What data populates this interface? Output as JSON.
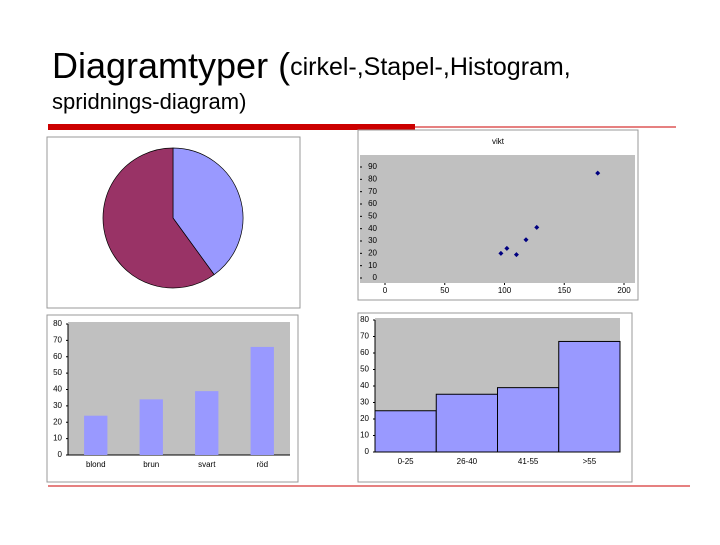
{
  "slide": {
    "title_main": "Diagramtyper (",
    "title_rest": "cirkel-,Stapel-,Histogram,",
    "title_line2": "spridnings-diagram)"
  },
  "chart_data": [
    {
      "type": "pie",
      "values": [
        40,
        60
      ],
      "colors": [
        "#9999ff",
        "#993366"
      ]
    },
    {
      "type": "scatter",
      "title": "vikt",
      "x": [
        97,
        102,
        110,
        118,
        127,
        178
      ],
      "values": [
        20,
        24,
        19,
        31,
        41,
        85
      ],
      "color": "#000080",
      "xlim": [
        0,
        200
      ],
      "xticks": [
        0,
        50,
        100,
        150,
        200
      ],
      "ylim": [
        0,
        90
      ],
      "yticks": [
        0,
        10,
        20,
        30,
        40,
        50,
        60,
        70,
        80,
        90
      ]
    },
    {
      "type": "bar",
      "categories": [
        "blond",
        "brun",
        "svart",
        "röd"
      ],
      "values": [
        24,
        34,
        39,
        66
      ],
      "color": "#9999ff",
      "ylim": [
        0,
        80
      ],
      "yticks": [
        0,
        10,
        20,
        30,
        40,
        50,
        60,
        70,
        80
      ]
    },
    {
      "type": "histogram",
      "categories": [
        "0-25",
        "26-40",
        "41-55",
        ">55"
      ],
      "values": [
        25,
        35,
        39,
        67
      ],
      "color": "#9999ff",
      "ylim": [
        0,
        80
      ],
      "yticks": [
        0,
        10,
        20,
        30,
        40,
        50,
        60,
        70,
        80
      ]
    }
  ]
}
